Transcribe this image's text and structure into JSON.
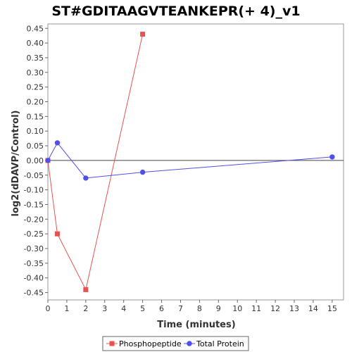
{
  "chart_data": {
    "type": "line",
    "title": "ST#GDITAAGVTEANKEPR(+ 4)_v1",
    "xlabel": "Time (minutes)",
    "ylabel": "log2(dDAVP/Control)",
    "xlim": [
      0,
      15.6
    ],
    "ylim": [
      -0.475,
      0.465
    ],
    "xticks": [
      0,
      1,
      2,
      3,
      4,
      5,
      6,
      7,
      8,
      9,
      10,
      11,
      12,
      13,
      14,
      15
    ],
    "yticks": [
      -0.45,
      -0.4,
      -0.35,
      -0.3,
      -0.25,
      -0.2,
      -0.15,
      -0.1,
      -0.05,
      0.0,
      0.05,
      0.1,
      0.15,
      0.2,
      0.25,
      0.3,
      0.35,
      0.4,
      0.45
    ],
    "ytick_labels": [
      "-0.45",
      "-0.40",
      "-0.35",
      "-0.30",
      "-0.25",
      "-0.20",
      "-0.15",
      "-0.10",
      "-0.05",
      "0.00",
      "0.05",
      "0.10",
      "0.15",
      "0.20",
      "0.25",
      "0.30",
      "0.35",
      "0.40",
      "0.45"
    ],
    "legend_position": "bottom",
    "grid": false,
    "series": [
      {
        "name": "Phosphopeptide",
        "color": "#e8524f",
        "marker": "square",
        "x": [
          0,
          0.5,
          2,
          5
        ],
        "y": [
          0.0,
          -0.25,
          -0.44,
          0.43
        ]
      },
      {
        "name": "Total Protein",
        "color": "#5050e8",
        "marker": "circle",
        "x": [
          0,
          0.5,
          2,
          5,
          15
        ],
        "y": [
          0.0,
          0.06,
          -0.06,
          -0.04,
          0.012
        ]
      }
    ]
  }
}
